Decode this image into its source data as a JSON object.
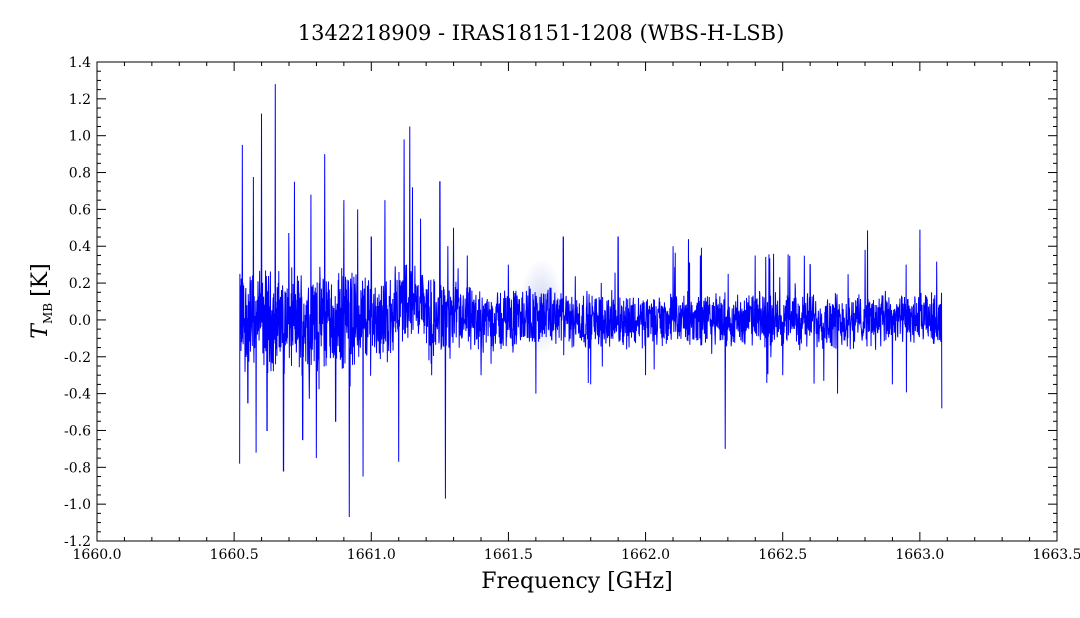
{
  "chart_data": {
    "type": "line",
    "title": "1342218909 - IRAS18151-1208 (WBS-H-LSB)",
    "xlabel": "Frequency [GHz]",
    "ylabel_main": "T",
    "ylabel_sub": "MB",
    "ylabel_unit": "[K]",
    "xlim": [
      1660.0,
      1663.5
    ],
    "ylim": [
      -1.2,
      1.4
    ],
    "x_ticks": [
      1660.0,
      1660.5,
      1661.0,
      1661.5,
      1662.0,
      1662.5,
      1663.0,
      1663.5
    ],
    "x_tick_labels": [
      "1660.0",
      "1660.5",
      "1661.0",
      "1661.5",
      "1662.0",
      "1662.5",
      "1663.0",
      "1663.5"
    ],
    "y_ticks": [
      -1.2,
      -1.0,
      -0.8,
      -0.6,
      -0.4,
      -0.2,
      0.0,
      0.2,
      0.4,
      0.6,
      0.8,
      1.0,
      1.2,
      1.4
    ],
    "y_tick_labels": [
      "-1.2",
      "-1.0",
      "-0.8",
      "-0.6",
      "-0.4",
      "-0.2",
      "0.0",
      "0.2",
      "0.4",
      "0.6",
      "0.8",
      "1.0",
      "1.2",
      "1.4"
    ],
    "grid": false,
    "series": [
      {
        "color": "#0000ff",
        "x_range": [
          1660.52,
          1663.08
        ],
        "x": [
          1660.52,
          1660.53,
          1660.55,
          1660.57,
          1660.58,
          1660.6,
          1660.62,
          1660.65,
          1660.68,
          1660.72,
          1660.75,
          1660.78,
          1660.8,
          1660.83,
          1660.87,
          1660.9,
          1660.92,
          1660.95,
          1660.97,
          1661.0,
          1661.05,
          1661.1,
          1661.12,
          1661.14,
          1661.15,
          1661.18,
          1661.22,
          1661.25,
          1661.27,
          1661.3,
          1661.35,
          1661.4,
          1661.5,
          1661.6,
          1661.7,
          1661.8,
          1661.9,
          1662.0,
          1662.1,
          1662.2,
          1662.29,
          1662.4,
          1662.5,
          1662.6,
          1662.7,
          1662.8,
          1662.9,
          1662.95,
          1663.0,
          1663.08
        ],
        "y": [
          -0.78,
          0.95,
          -0.45,
          0.7,
          -0.72,
          1.12,
          -0.6,
          1.28,
          -0.82,
          0.75,
          -0.65,
          0.68,
          -0.75,
          0.9,
          -0.55,
          0.65,
          -1.07,
          0.6,
          -0.85,
          0.45,
          0.65,
          -0.77,
          0.98,
          1.05,
          0.72,
          0.55,
          -0.3,
          0.75,
          -0.97,
          0.5,
          0.35,
          -0.3,
          0.3,
          -0.4,
          0.45,
          -0.35,
          0.45,
          -0.3,
          0.4,
          0.35,
          -0.7,
          0.35,
          -0.3,
          0.3,
          -0.4,
          0.38,
          -0.35,
          0.3,
          0.49,
          -0.48
        ]
      }
    ]
  }
}
